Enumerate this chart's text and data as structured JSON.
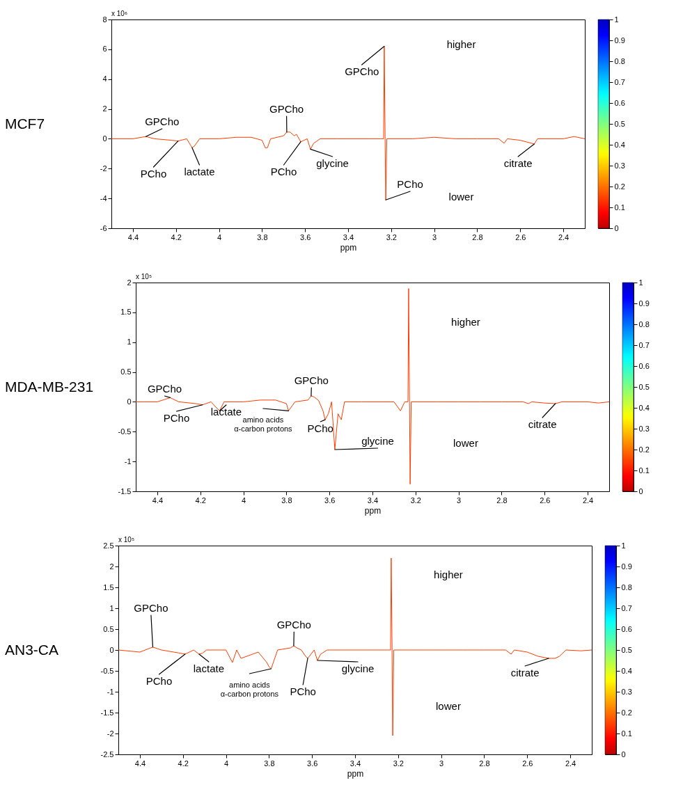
{
  "chart_data": [
    {
      "type": "line",
      "ylabel": "MCF7",
      "xlabel": "ppm",
      "xlim": [
        4.5,
        2.3
      ],
      "xticks": [
        4.4,
        4.2,
        4,
        3.8,
        3.6,
        3.4,
        3.2,
        3,
        2.8,
        2.6,
        2.4
      ],
      "ylim": [
        -6,
        8
      ],
      "yticks": [
        -6,
        -4,
        -2,
        0,
        2,
        4,
        6,
        8
      ],
      "clim": [
        0,
        1
      ],
      "cticks": [
        0,
        0.1,
        0.2,
        0.3,
        0.4,
        0.5,
        0.6,
        0.7,
        0.8,
        0.9,
        1
      ],
      "series": [
        {
          "color": "#ff3c00",
          "x": [
            4.5,
            4.4,
            4.34,
            4.3,
            4.22,
            4.19,
            4.15,
            4.125,
            4.115,
            4.09,
            4.0,
            3.92,
            3.85,
            3.8,
            3.785,
            3.775,
            3.76,
            3.7,
            3.685,
            3.67,
            3.65,
            3.64,
            3.62,
            3.59,
            3.575,
            3.56,
            3.53,
            3.45,
            3.3,
            3.25,
            3.235,
            3.232,
            3.228,
            3.225,
            3.22,
            3.1,
            3.0,
            2.9,
            2.8,
            2.7,
            2.675,
            2.66,
            2.6,
            2.535,
            2.52,
            2.4,
            2.35,
            2.3
          ],
          "values": [
            0,
            0,
            0.15,
            0,
            -0.1,
            -0.15,
            0,
            -0.6,
            -0.5,
            0,
            0,
            0.1,
            0.1,
            -0.1,
            -0.6,
            -0.6,
            0,
            0.2,
            0.45,
            0.45,
            0.2,
            0.3,
            -0.2,
            0,
            -0.7,
            -0.3,
            0,
            0,
            0,
            0,
            0,
            6.2,
            0,
            -4.1,
            0,
            0,
            0.1,
            0,
            0,
            0,
            -0.3,
            0,
            -0.1,
            -0.35,
            0,
            0,
            0.15,
            0
          ]
        }
      ],
      "annotations": [
        "x 10⁶",
        {
          "text": "GPCho",
          "x": 4.34,
          "y": 0.15
        },
        {
          "text": "PCho",
          "x": 4.19,
          "y": -0.15
        },
        {
          "text": "lactate",
          "x": 4.125,
          "y": -0.6
        },
        {
          "text": "GPCho",
          "x": 3.685,
          "y": 0.45
        },
        {
          "text": "PCho",
          "x": 3.62,
          "y": -0.2
        },
        {
          "text": "glycine",
          "x": 3.575,
          "y": -0.7
        },
        {
          "text": "GPCho",
          "x": 3.232,
          "y": 6.2
        },
        {
          "text": "PCho",
          "x": 3.225,
          "y": -4.1
        },
        {
          "text": "citrate",
          "x": 2.535,
          "y": -0.35
        },
        "higher",
        "lower"
      ]
    },
    {
      "type": "line",
      "ylabel": "MDA-MB-231",
      "xlabel": "ppm",
      "xlim": [
        4.5,
        2.3
      ],
      "xticks": [
        4.4,
        4.2,
        4,
        3.8,
        3.6,
        3.4,
        3.2,
        3,
        2.8,
        2.6,
        2.4
      ],
      "ylim": [
        -1.5,
        2
      ],
      "yticks": [
        -1.5,
        -1,
        -0.5,
        0,
        0.5,
        1,
        1.5,
        2
      ],
      "clim": [
        0,
        1
      ],
      "cticks": [
        0,
        0.1,
        0.2,
        0.3,
        0.4,
        0.5,
        0.6,
        0.7,
        0.8,
        0.9,
        1
      ],
      "series": [
        {
          "color": "#ff3c00",
          "x": [
            4.5,
            4.4,
            4.34,
            4.3,
            4.22,
            4.19,
            4.15,
            4.125,
            4.11,
            4.09,
            4.0,
            3.92,
            3.85,
            3.8,
            3.79,
            3.78,
            3.76,
            3.7,
            3.685,
            3.67,
            3.65,
            3.63,
            3.62,
            3.605,
            3.59,
            3.575,
            3.56,
            3.545,
            3.53,
            3.45,
            3.3,
            3.28,
            3.27,
            3.25,
            3.235,
            3.232,
            3.228,
            3.225,
            3.22,
            3.1,
            3.0,
            2.9,
            2.8,
            2.7,
            2.675,
            2.66,
            2.6,
            2.55,
            2.52,
            2.4,
            2.35,
            2.3
          ],
          "values": [
            0,
            0,
            0.07,
            0,
            -0.03,
            -0.05,
            0,
            -0.1,
            -0.15,
            0,
            0,
            0.03,
            0.03,
            -0.03,
            -0.15,
            -0.1,
            0,
            0.03,
            0.1,
            0.08,
            0.02,
            -0.15,
            -0.3,
            -0.2,
            0,
            -0.8,
            -0.2,
            -0.3,
            0,
            0,
            0,
            -0.1,
            -0.15,
            0,
            0,
            1.9,
            0,
            -1.38,
            0,
            0,
            0,
            0,
            0,
            0,
            -0.03,
            0,
            -0.02,
            -0.03,
            0,
            0,
            -0.02,
            0
          ]
        }
      ],
      "annotations": [
        "x 10⁵",
        {
          "text": "GPCho",
          "x": 4.34,
          "y": 0.07
        },
        {
          "text": "PCho",
          "x": 4.19,
          "y": -0.05
        },
        {
          "text": "lactate",
          "x": 4.11,
          "y": -0.15
        },
        {
          "text": "amino acids\nα-carbon protons",
          "x": 3.79,
          "y": -0.15
        },
        {
          "text": "GPCho",
          "x": 3.685,
          "y": 0.1
        },
        {
          "text": "PCho",
          "x": 3.62,
          "y": -0.3
        },
        {
          "text": "glycine",
          "x": 3.575,
          "y": -0.8
        },
        {
          "text": "citrate",
          "x": 2.55,
          "y": -0.03
        },
        "higher",
        "lower"
      ]
    },
    {
      "type": "line",
      "ylabel": "AN3-CA",
      "xlabel": "ppm",
      "xlim": [
        4.5,
        2.3
      ],
      "xticks": [
        4.4,
        4.2,
        4,
        3.8,
        3.6,
        3.4,
        3.2,
        3,
        2.8,
        2.6,
        2.4
      ],
      "ylim": [
        -2.5,
        2.5
      ],
      "yticks": [
        -2.5,
        -2,
        -1.5,
        -1,
        -0.5,
        0,
        0.5,
        1,
        1.5,
        2,
        2.5
      ],
      "clim": [
        0,
        1
      ],
      "cticks": [
        0,
        0.1,
        0.2,
        0.3,
        0.4,
        0.5,
        0.6,
        0.7,
        0.8,
        0.9,
        1
      ],
      "series": [
        {
          "color": "#ff3c00",
          "x": [
            4.5,
            4.4,
            4.34,
            4.3,
            4.22,
            4.19,
            4.15,
            4.125,
            4.11,
            4.09,
            4.0,
            3.97,
            3.95,
            3.93,
            3.85,
            3.81,
            3.8,
            3.79,
            3.78,
            3.76,
            3.7,
            3.685,
            3.67,
            3.65,
            3.63,
            3.62,
            3.605,
            3.59,
            3.575,
            3.56,
            3.53,
            3.45,
            3.3,
            3.25,
            3.235,
            3.232,
            3.228,
            3.225,
            3.22,
            3.1,
            3.0,
            2.9,
            2.8,
            2.7,
            2.675,
            2.66,
            2.6,
            2.55,
            2.5,
            2.47,
            2.45,
            2.42,
            2.35,
            2.3
          ],
          "values": [
            0,
            -0.05,
            0.07,
            0,
            -0.07,
            -0.1,
            0,
            -0.1,
            -0.08,
            0,
            0,
            -0.3,
            0,
            -0.2,
            -0.05,
            -0.3,
            -0.4,
            -0.45,
            -0.3,
            0,
            0.05,
            0.1,
            0.05,
            0,
            -0.15,
            -0.2,
            -0.1,
            0,
            -0.25,
            -0.1,
            0,
            0,
            0,
            0,
            0,
            2.2,
            0,
            -2.05,
            0,
            0,
            0,
            0,
            0,
            0,
            -0.1,
            0,
            -0.05,
            -0.15,
            -0.2,
            -0.2,
            -0.15,
            0,
            -0.02,
            0
          ]
        }
      ],
      "annotations": [
        "x 10⁵",
        {
          "text": "GPCho",
          "x": 4.34,
          "y": 0.07
        },
        {
          "text": "PCho",
          "x": 4.19,
          "y": -0.1
        },
        {
          "text": "lactate",
          "x": 4.125,
          "y": -0.1
        },
        {
          "text": "amino acids\nα-carbon protons",
          "x": 3.79,
          "y": -0.45
        },
        {
          "text": "GPCho",
          "x": 3.685,
          "y": 0.1
        },
        {
          "text": "PCho",
          "x": 3.62,
          "y": -0.2
        },
        {
          "text": "glycine",
          "x": 3.575,
          "y": -0.25
        },
        {
          "text": "citrate",
          "x": 2.5,
          "y": -0.2
        },
        "higher",
        "lower"
      ]
    }
  ]
}
